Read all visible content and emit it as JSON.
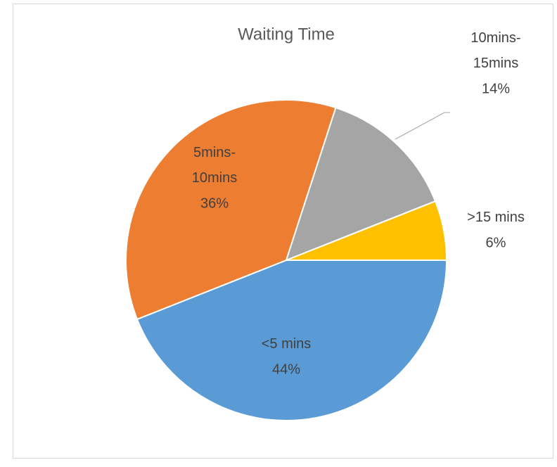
{
  "chart_data": {
    "type": "pie",
    "title": "Waiting Time",
    "categories": [
      "<5 mins",
      "5mins-10mins",
      "10mins-15mins",
      ">15 mins"
    ],
    "values": [
      44,
      36,
      14,
      6
    ],
    "value_labels": [
      "44%",
      "36%",
      "14%",
      "6%"
    ],
    "colors": [
      "#5b9bd5",
      "#ed7d31",
      "#a5a5a5",
      "#ffc000"
    ]
  }
}
